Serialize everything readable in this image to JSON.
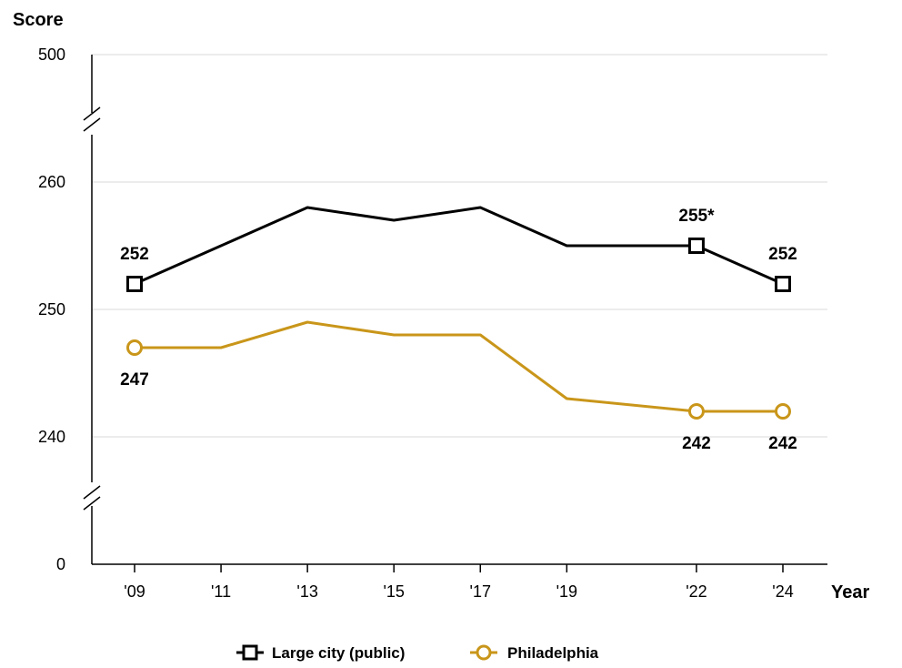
{
  "chart_data": {
    "type": "line",
    "y_axis_title": "Score",
    "x_axis_title": "Year",
    "x": [
      "'09",
      "'11",
      "'13",
      "'15",
      "'17",
      "'19",
      "'22",
      "'24"
    ],
    "y_ticks": [
      500,
      260,
      250,
      240,
      0
    ],
    "y_scale": "broken",
    "ylim_main": [
      235,
      265
    ],
    "grid": "horizontal",
    "legend_position": "bottom-center",
    "series": [
      {
        "name": "Large city (public)",
        "marker": "square",
        "color": "#000000",
        "values": [
          252,
          255,
          258,
          257,
          258,
          255,
          255,
          252
        ],
        "labels": [
          {
            "x": "'09",
            "text": "252"
          },
          {
            "x": "'22",
            "text": "255*"
          },
          {
            "x": "'24",
            "text": "252"
          }
        ]
      },
      {
        "name": "Philadelphia",
        "marker": "circle",
        "color": "#C9961A",
        "values": [
          247,
          247,
          249,
          248,
          248,
          243,
          242,
          242
        ],
        "labels": [
          {
            "x": "'09",
            "text": "247"
          },
          {
            "x": "'22",
            "text": "242"
          },
          {
            "x": "'24",
            "text": "242"
          }
        ]
      }
    ]
  }
}
